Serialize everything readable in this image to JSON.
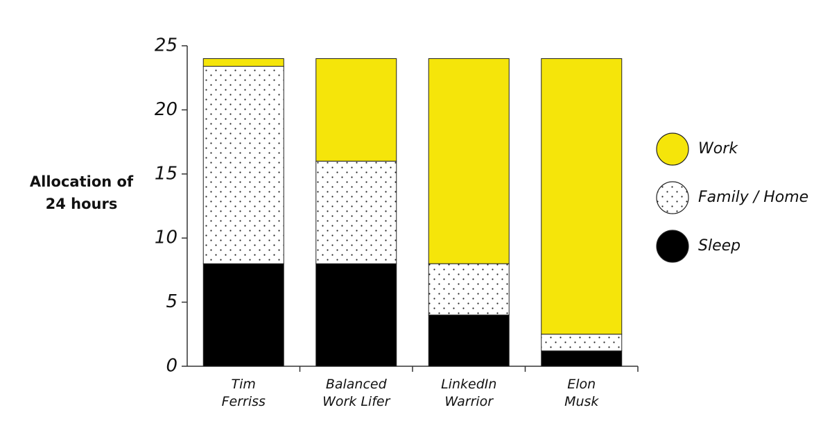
{
  "chart_data": {
    "type": "stacked_bar",
    "y_label": "Allocation of\n24 hours",
    "categories": [
      "Tim\nFerriss",
      "Balanced\nWork Lifer",
      "LinkedIn\nWarrior",
      "Elon\nMusk"
    ],
    "series": [
      {
        "name": "Sleep",
        "color": "#000000",
        "values": [
          8,
          8,
          4,
          1.2
        ]
      },
      {
        "name": "Family / Home",
        "color": "#ffffff",
        "pattern": "dots",
        "values": [
          15.4,
          8,
          4,
          1.3
        ]
      },
      {
        "name": "Work",
        "color": "#f5e50a",
        "values": [
          0.6,
          8,
          16,
          21.5
        ]
      }
    ],
    "ylim": [
      0,
      25
    ],
    "yticks": [
      0,
      5,
      10,
      15,
      20,
      25
    ],
    "grid": false,
    "legend": "right"
  }
}
